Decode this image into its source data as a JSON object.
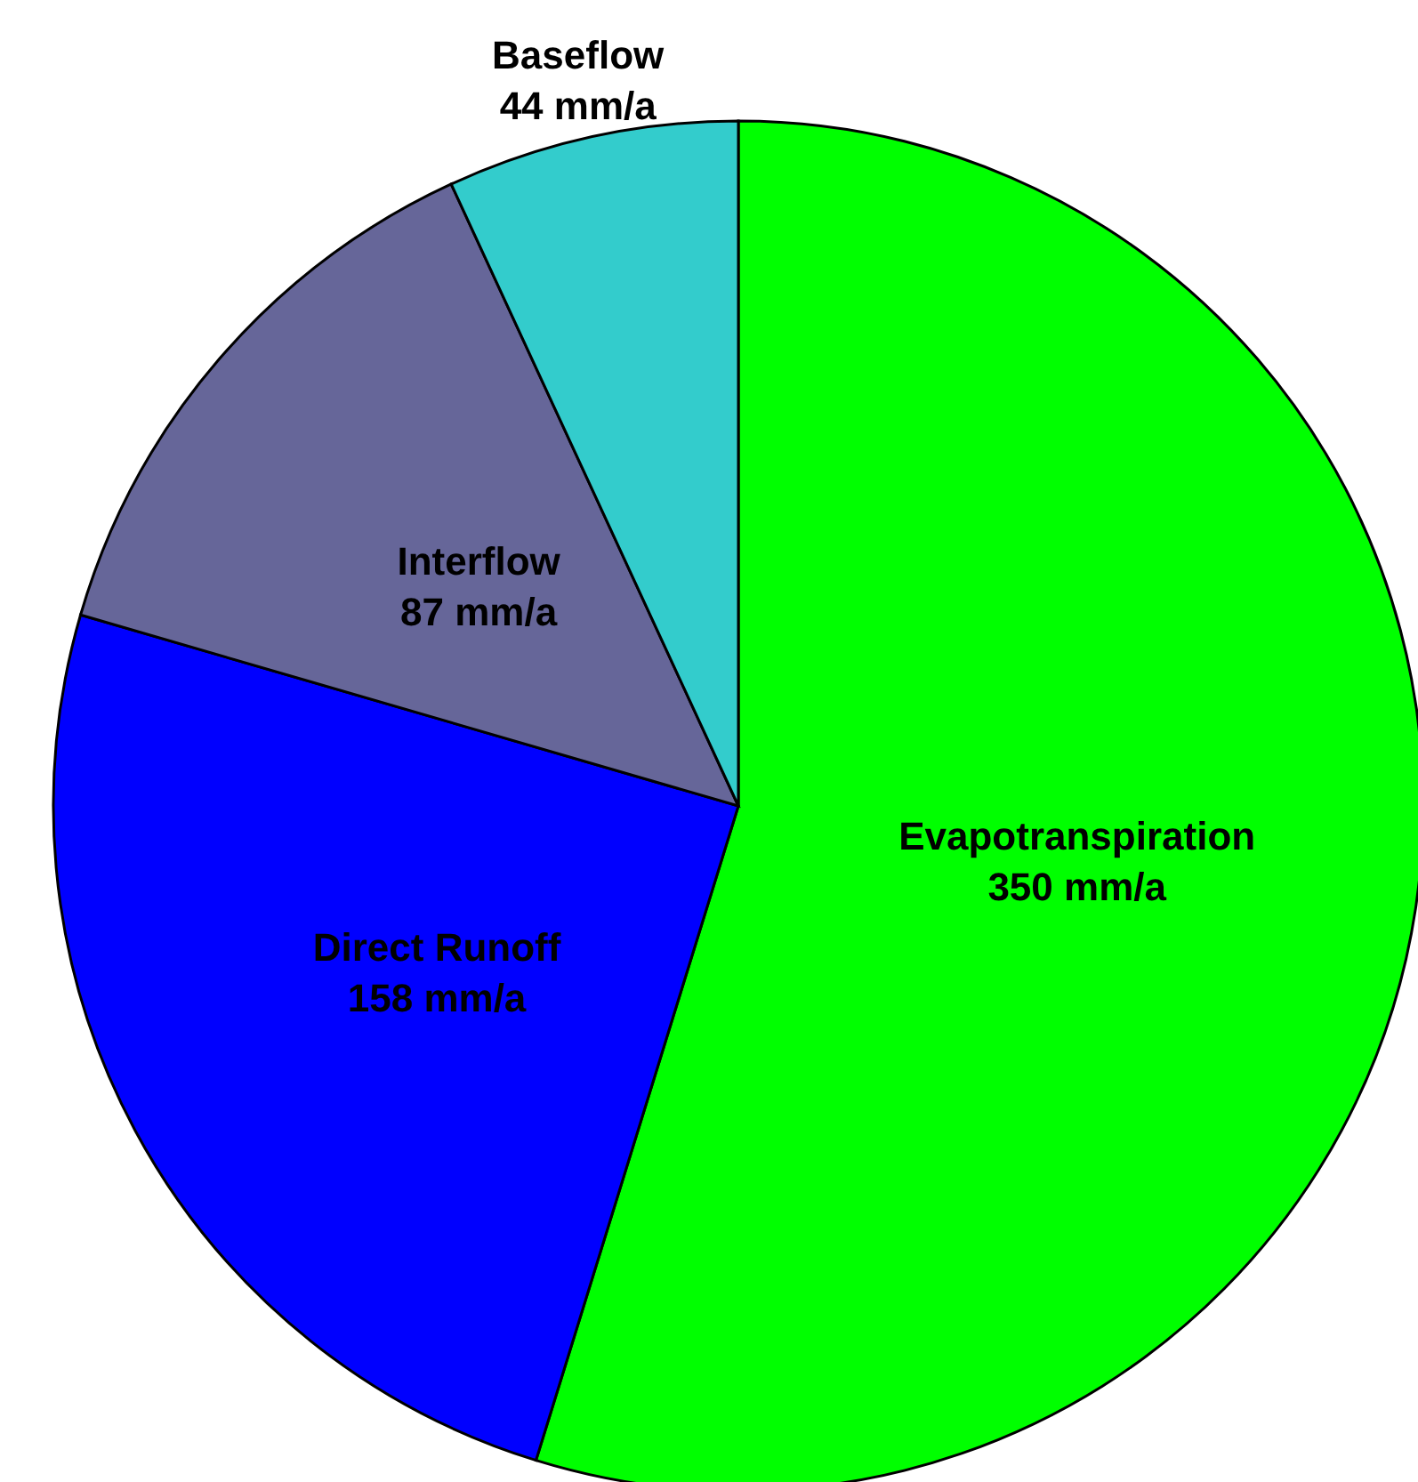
{
  "chart_data": {
    "type": "pie",
    "categories": [
      "Evapotranspiration",
      "Direct Runoff",
      "Interflow",
      "Baseflow"
    ],
    "values": [
      350,
      158,
      87,
      44
    ],
    "value_labels": [
      "350 mm/a",
      "158 mm/a",
      "87 mm/a",
      "44 mm/a"
    ],
    "colors": [
      "#00ff00",
      "#0000ff",
      "#666699",
      "#33cccc"
    ],
    "legend": false
  }
}
